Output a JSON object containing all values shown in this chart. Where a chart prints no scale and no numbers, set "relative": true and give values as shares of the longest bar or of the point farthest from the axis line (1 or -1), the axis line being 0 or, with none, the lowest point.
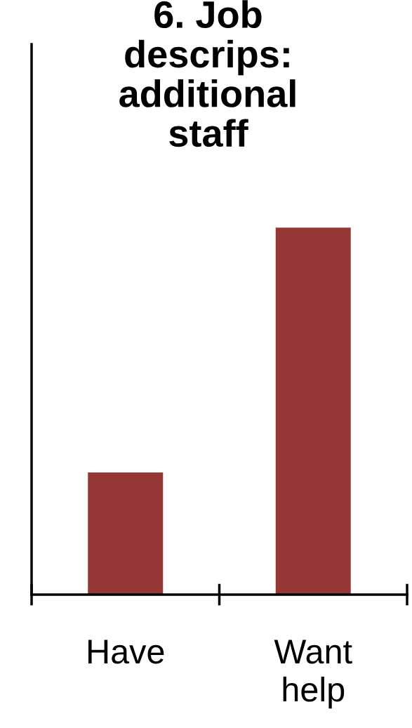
{
  "chart_data": {
    "type": "bar",
    "title": "6. Job descrips: additional staff",
    "categories": [
      "Have",
      "Want help"
    ],
    "values": [
      0.333,
      1
    ],
    "color": "#953735",
    "relative": true,
    "grid": false,
    "legend": false
  }
}
